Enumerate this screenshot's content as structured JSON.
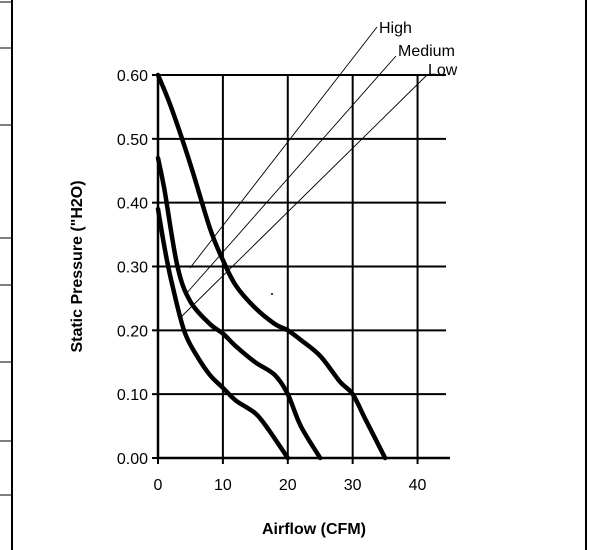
{
  "chart_data": {
    "type": "line",
    "xlabel": "Airflow (CFM)",
    "ylabel": "Static Pressure (\"H2O)",
    "xlim": [
      0,
      45
    ],
    "ylim": [
      0,
      0.6
    ],
    "x_ticks": [
      "0",
      "10",
      "20",
      "30",
      "40"
    ],
    "y_ticks": [
      "0.00",
      "0.10",
      "0.20",
      "0.30",
      "0.40",
      "0.50",
      "0.60"
    ],
    "grid": true,
    "series": [
      {
        "name": "High",
        "x": [
          0,
          2,
          5,
          8,
          10,
          12,
          15,
          18,
          20,
          22,
          25,
          28,
          30,
          32,
          35
        ],
        "y": [
          0.6,
          0.55,
          0.46,
          0.36,
          0.31,
          0.27,
          0.235,
          0.21,
          0.2,
          0.185,
          0.16,
          0.12,
          0.1,
          0.06,
          0
        ]
      },
      {
        "name": "Medium",
        "x": [
          0,
          1,
          3,
          5,
          8,
          10,
          12,
          15,
          18,
          20,
          22,
          25
        ],
        "y": [
          0.47,
          0.42,
          0.3,
          0.245,
          0.21,
          0.195,
          0.175,
          0.15,
          0.13,
          0.1,
          0.05,
          0
        ]
      },
      {
        "name": "Low",
        "x": [
          0,
          1,
          2,
          4,
          6,
          8,
          10,
          12,
          15,
          17,
          20
        ],
        "y": [
          0.39,
          0.33,
          0.28,
          0.2,
          0.16,
          0.13,
          0.11,
          0.09,
          0.07,
          0.045,
          0
        ]
      }
    ]
  }
}
